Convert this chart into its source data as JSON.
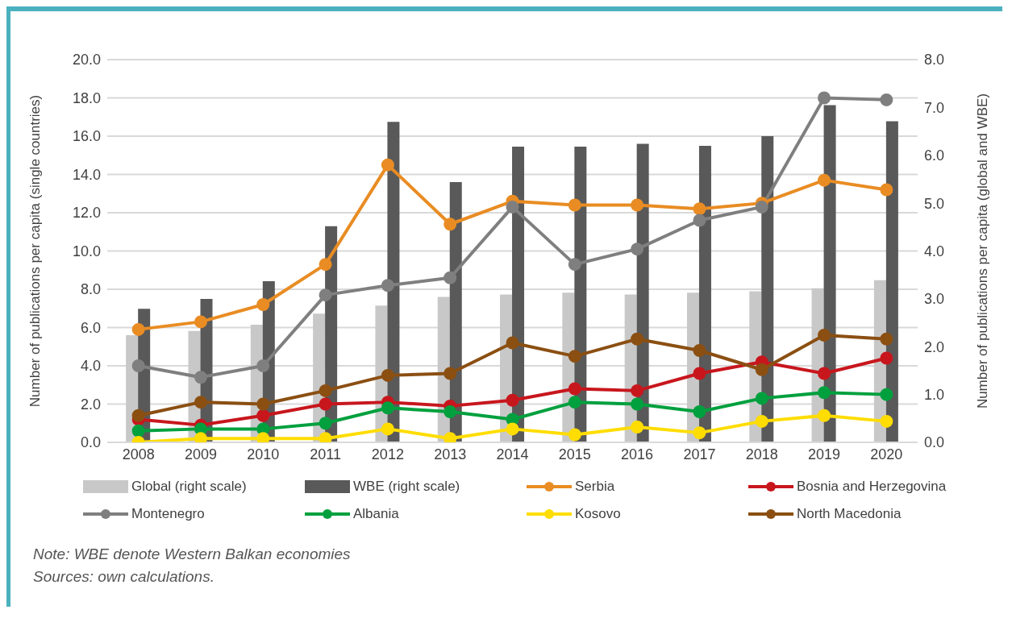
{
  "chart_data": {
    "type": "line",
    "ylabel": "Number of publications per capita (single countries)",
    "y2label": "Number of publications per capita (global and WBE)",
    "categories": [
      "2008",
      "2009",
      "2010",
      "2011",
      "2012",
      "2013",
      "2014",
      "2015",
      "2016",
      "2017",
      "2018",
      "2019",
      "2020"
    ],
    "series": [
      {
        "name": "Global (right scale)",
        "type": "bar",
        "axis": "y2",
        "color": "#c8c8c8",
        "values": [
          2.24,
          2.33,
          2.46,
          2.69,
          2.86,
          3.04,
          3.09,
          3.13,
          3.09,
          3.13,
          3.16,
          3.22,
          3.39
        ]
      },
      {
        "name": "WBE (right scale)",
        "type": "bar",
        "axis": "y2",
        "color": "#595959",
        "values": [
          2.79,
          3.0,
          3.37,
          4.52,
          6.7,
          5.44,
          6.18,
          6.18,
          6.24,
          6.2,
          6.4,
          7.05,
          6.71
        ]
      },
      {
        "name": "Serbia",
        "color": "#e98c23",
        "values": [
          5.9,
          6.3,
          7.2,
          9.3,
          14.5,
          11.4,
          12.6,
          12.4,
          12.4,
          12.2,
          12.5,
          13.7,
          13.2
        ]
      },
      {
        "name": "Bosnia and Herzegovina",
        "color": "#c8161d",
        "values": [
          1.2,
          0.9,
          1.4,
          2.0,
          2.1,
          1.9,
          2.2,
          2.8,
          2.7,
          3.6,
          4.2,
          3.6,
          4.4
        ]
      },
      {
        "name": "Montenegro",
        "color": "#7f7f7f",
        "values": [
          4.0,
          3.4,
          4.0,
          7.7,
          8.2,
          8.6,
          12.3,
          9.3,
          10.1,
          11.6,
          12.3,
          18.0,
          17.9
        ]
      },
      {
        "name": "Albania",
        "color": "#00a03e",
        "values": [
          0.6,
          0.7,
          0.7,
          1.0,
          1.8,
          1.6,
          1.2,
          2.1,
          2.0,
          1.6,
          2.3,
          2.6,
          2.5
        ]
      },
      {
        "name": "Kosovo",
        "color": "#ffdd00",
        "values": [
          0.0,
          0.2,
          0.2,
          0.2,
          0.7,
          0.2,
          0.7,
          0.4,
          0.8,
          0.5,
          1.1,
          1.4,
          1.1
        ]
      },
      {
        "name": "North Macedonia",
        "color": "#8b4f12",
        "values": [
          1.4,
          2.1,
          2.0,
          2.7,
          3.5,
          3.6,
          5.2,
          4.5,
          5.4,
          4.8,
          3.8,
          5.6,
          5.4
        ]
      }
    ],
    "ylim": [
      0,
      20
    ],
    "yticks": [
      {
        "value": 0,
        "label": "0.0"
      },
      {
        "value": 2,
        "label": "2.0"
      },
      {
        "value": 4,
        "label": "4.0"
      },
      {
        "value": 6,
        "label": "6.0"
      },
      {
        "value": 8,
        "label": "8.0"
      },
      {
        "value": 10,
        "label": "10.0"
      },
      {
        "value": 12,
        "label": "12.0"
      },
      {
        "value": 14,
        "label": "14.0"
      },
      {
        "value": 16,
        "label": "16.0"
      },
      {
        "value": 18,
        "label": "18.0"
      },
      {
        "value": 20,
        "label": "20.0"
      }
    ],
    "y2lim": [
      0,
      8
    ],
    "y2ticks": [
      {
        "value": 0,
        "label": "0.0"
      },
      {
        "value": 1,
        "label": "1.0"
      },
      {
        "value": 2,
        "label": "2.0"
      },
      {
        "value": 3,
        "label": "3.0"
      },
      {
        "value": 4,
        "label": "4.0"
      },
      {
        "value": 5,
        "label": "5.0"
      },
      {
        "value": 6,
        "label": "6.0"
      },
      {
        "value": 7,
        "label": "7.0"
      },
      {
        "value": 8,
        "label": "8.0"
      }
    ],
    "grid": "y",
    "legend": "bottom",
    "marker": "circle",
    "line_style": "solid",
    "annotations": [
      "Note: WBE denote Western Balkan economies",
      "Sources: own calculations."
    ]
  }
}
